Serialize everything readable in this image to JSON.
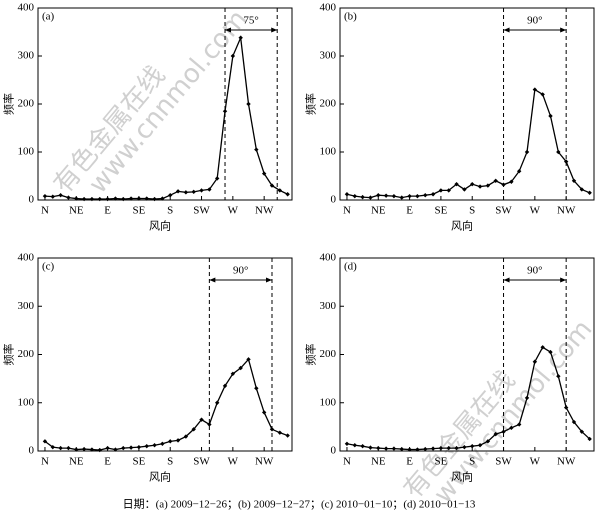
{
  "chart_data": [
    {
      "type": "line",
      "panel_label": "(a)",
      "xlabel": "风向",
      "ylabel": "频率",
      "color": "#000000",
      "x": [
        0,
        11.25,
        22.5,
        33.75,
        45,
        56.25,
        67.5,
        78.75,
        90,
        101.25,
        112.5,
        123.75,
        135,
        146.25,
        157.5,
        168.75,
        180,
        191.25,
        202.5,
        213.75,
        225,
        236.25,
        247.5,
        258.75,
        270,
        281.25,
        292.5,
        303.75,
        315,
        326.25,
        337.5,
        348.75
      ],
      "values": [
        8,
        7,
        10,
        5,
        3,
        2,
        2,
        2,
        2,
        3,
        2,
        3,
        3,
        3,
        2,
        3,
        10,
        18,
        16,
        17,
        20,
        22,
        45,
        185,
        300,
        338,
        200,
        105,
        55,
        30,
        20,
        12
      ],
      "xlim": [
        -10,
        355
      ],
      "xticks": [
        {
          "value": 0,
          "label": "N"
        },
        {
          "value": 45,
          "label": "NE"
        },
        {
          "value": 90,
          "label": "E"
        },
        {
          "value": 135,
          "label": "SE"
        },
        {
          "value": 180,
          "label": "S"
        },
        {
          "value": 225,
          "label": "SW"
        },
        {
          "value": 270,
          "label": "W"
        },
        {
          "value": 315,
          "label": "NW"
        }
      ],
      "ylim": [
        0,
        400
      ],
      "yticks": [
        0,
        100,
        200,
        300,
        400
      ],
      "annotation": {
        "text": "75°",
        "range": [
          258.75,
          333.75
        ]
      }
    },
    {
      "type": "line",
      "panel_label": "(b)",
      "xlabel": "风向",
      "ylabel": "频率",
      "color": "#000000",
      "x": [
        0,
        11.25,
        22.5,
        33.75,
        45,
        56.25,
        67.5,
        78.75,
        90,
        101.25,
        112.5,
        123.75,
        135,
        146.25,
        157.5,
        168.75,
        180,
        191.25,
        202.5,
        213.75,
        225,
        236.25,
        247.5,
        258.75,
        270,
        281.25,
        292.5,
        303.75,
        315,
        326.25,
        337.5,
        348.75
      ],
      "values": [
        12,
        8,
        6,
        5,
        10,
        9,
        8,
        5,
        8,
        8,
        10,
        12,
        20,
        20,
        33,
        22,
        33,
        28,
        30,
        40,
        32,
        38,
        60,
        100,
        230,
        220,
        175,
        100,
        80,
        40,
        22,
        15
      ],
      "xlim": [
        -10,
        355
      ],
      "xticks": [
        {
          "value": 0,
          "label": "N"
        },
        {
          "value": 45,
          "label": "NE"
        },
        {
          "value": 90,
          "label": "E"
        },
        {
          "value": 135,
          "label": "SE"
        },
        {
          "value": 180,
          "label": "S"
        },
        {
          "value": 225,
          "label": "SW"
        },
        {
          "value": 270,
          "label": "W"
        },
        {
          "value": 315,
          "label": "NW"
        }
      ],
      "ylim": [
        0,
        400
      ],
      "yticks": [
        0,
        100,
        200,
        300,
        400
      ],
      "annotation": {
        "text": "90°",
        "range": [
          225,
          315
        ]
      }
    },
    {
      "type": "line",
      "panel_label": "(c)",
      "xlabel": "风向",
      "ylabel": "频率",
      "color": "#000000",
      "x": [
        0,
        11.25,
        22.5,
        33.75,
        45,
        56.25,
        67.5,
        78.75,
        90,
        101.25,
        112.5,
        123.75,
        135,
        146.25,
        157.5,
        168.75,
        180,
        191.25,
        202.5,
        213.75,
        225,
        236.25,
        247.5,
        258.75,
        270,
        281.25,
        292.5,
        303.75,
        315,
        326.25,
        337.5,
        348.75
      ],
      "values": [
        20,
        8,
        6,
        6,
        3,
        4,
        3,
        2,
        6,
        3,
        6,
        7,
        8,
        10,
        12,
        15,
        20,
        22,
        30,
        45,
        65,
        55,
        100,
        135,
        160,
        172,
        190,
        130,
        80,
        45,
        38,
        32
      ],
      "xlim": [
        -10,
        355
      ],
      "xticks": [
        {
          "value": 0,
          "label": "N"
        },
        {
          "value": 45,
          "label": "NE"
        },
        {
          "value": 90,
          "label": "E"
        },
        {
          "value": 135,
          "label": "SE"
        },
        {
          "value": 180,
          "label": "S"
        },
        {
          "value": 225,
          "label": "SW"
        },
        {
          "value": 270,
          "label": "W"
        },
        {
          "value": 315,
          "label": "NW"
        }
      ],
      "ylim": [
        0,
        400
      ],
      "yticks": [
        0,
        100,
        200,
        300,
        400
      ],
      "annotation": {
        "text": "90°",
        "range": [
          236.25,
          326.25
        ]
      }
    },
    {
      "type": "line",
      "panel_label": "(d)",
      "xlabel": "风向",
      "ylabel": "频率",
      "color": "#000000",
      "x": [
        0,
        11.25,
        22.5,
        33.75,
        45,
        56.25,
        67.5,
        78.75,
        90,
        101.25,
        112.5,
        123.75,
        135,
        146.25,
        157.5,
        168.75,
        180,
        191.25,
        202.5,
        213.75,
        225,
        236.25,
        247.5,
        258.75,
        270,
        281.25,
        292.5,
        303.75,
        315,
        326.25,
        337.5,
        348.75
      ],
      "values": [
        15,
        12,
        10,
        7,
        6,
        5,
        5,
        4,
        3,
        3,
        4,
        5,
        6,
        6,
        6,
        8,
        10,
        12,
        20,
        35,
        40,
        48,
        55,
        110,
        185,
        215,
        205,
        155,
        90,
        60,
        40,
        25
      ],
      "xlim": [
        -10,
        355
      ],
      "xticks": [
        {
          "value": 0,
          "label": "N"
        },
        {
          "value": 45,
          "label": "NE"
        },
        {
          "value": 90,
          "label": "E"
        },
        {
          "value": 135,
          "label": "SE"
        },
        {
          "value": 180,
          "label": "S"
        },
        {
          "value": 225,
          "label": "SW"
        },
        {
          "value": 270,
          "label": "W"
        },
        {
          "value": 315,
          "label": "NW"
        }
      ],
      "ylim": [
        0,
        400
      ],
      "yticks": [
        0,
        100,
        200,
        300,
        400
      ],
      "annotation": {
        "text": "90°",
        "range": [
          225,
          315
        ]
      }
    }
  ],
  "caption": "日期：(a) 2009−12−26；(b) 2009−12−27；(c) 2010−01−10；(d) 2010−01−13",
  "watermark": [
    "有色金属在线",
    "www.cnnmol.com"
  ]
}
